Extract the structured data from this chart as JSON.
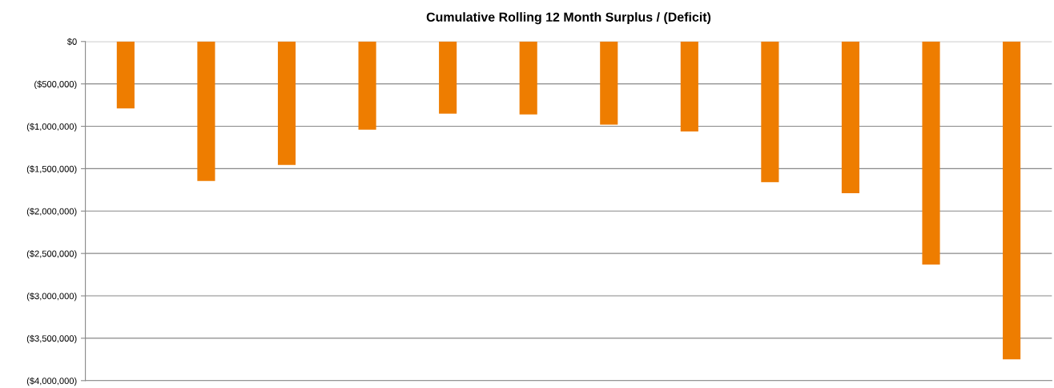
{
  "chart_data": {
    "type": "bar",
    "title": "Cumulative Rolling 12 Month Surplus / (Deficit)",
    "categories": [
      null,
      null,
      null,
      null,
      null,
      null,
      null,
      null,
      null,
      null,
      null,
      null
    ],
    "values": [
      -790000,
      -1645000,
      -1455000,
      -1040000,
      -850000,
      -860000,
      -980000,
      -1060000,
      -1660000,
      -1790000,
      -2630000,
      -3750000
    ],
    "color": "#ee7d00",
    "ylim": [
      -4000000,
      0
    ],
    "yticks": [
      {
        "value": 0,
        "label": "$0"
      },
      {
        "value": -500000,
        "label": "($500,000)"
      },
      {
        "value": -1000000,
        "label": "($1,000,000)"
      },
      {
        "value": -1500000,
        "label": "($1,500,000)"
      },
      {
        "value": -2000000,
        "label": "($2,000,000)"
      },
      {
        "value": -2500000,
        "label": "($2,500,000)"
      },
      {
        "value": -3000000,
        "label": "($3,000,000)"
      },
      {
        "value": -3500000,
        "label": "($3,500,000)"
      },
      {
        "value": -4000000,
        "label": "($4,000,000)"
      }
    ],
    "grid": "y",
    "legend": false
  }
}
